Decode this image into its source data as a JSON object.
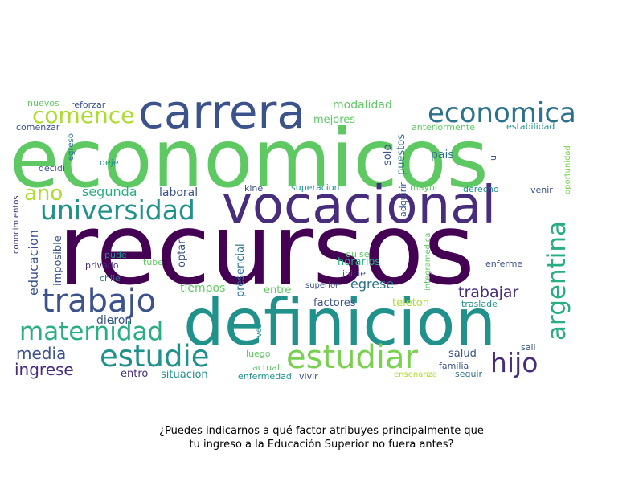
{
  "caption": {
    "line1": "¿Puedes indicarnos a qué factor atribuyes principalmente que",
    "line2": "tu ingreso a la Educación Superior no fuera antes?"
  },
  "palette": {
    "deep_purple": "#440154",
    "dark_purple": "#472d7b",
    "indigo": "#3b528b",
    "blue": "#2c728e",
    "teal": "#21918c",
    "green_teal": "#28ae80",
    "green": "#5ec962",
    "lime": "#addc30",
    "yellow": "#fde725"
  },
  "words": [
    {
      "text": "economicos",
      "color": "#5ec962"
    },
    {
      "text": "recursos",
      "color": "#440154"
    },
    {
      "text": "definicion",
      "color": "#21918c"
    },
    {
      "text": "vocacional",
      "color": "#472d7b"
    },
    {
      "text": "carrera",
      "color": "#3b528b"
    },
    {
      "text": "economica",
      "color": "#2c728e"
    },
    {
      "text": "universidad",
      "color": "#21918c"
    },
    {
      "text": "trabajo",
      "color": "#3b528b"
    },
    {
      "text": "maternidad",
      "color": "#28ae80"
    },
    {
      "text": "estudie",
      "color": "#21918c"
    },
    {
      "text": "estudiar",
      "color": "#7ad151"
    },
    {
      "text": "argentina",
      "color": "#28ae80"
    },
    {
      "text": "hijo",
      "color": "#472d7b"
    },
    {
      "text": "comence",
      "color": "#addc30"
    },
    {
      "text": "ano",
      "color": "#addc30"
    },
    {
      "text": "media",
      "color": "#3b528b"
    },
    {
      "text": "ingrese",
      "color": "#472d7b"
    },
    {
      "text": "segunda",
      "color": "#28ae80"
    },
    {
      "text": "laboral",
      "color": "#3b528b"
    },
    {
      "text": "educacion",
      "color": "#3b528b"
    },
    {
      "text": "trabajar",
      "color": "#472d7b"
    },
    {
      "text": "egrese",
      "color": "#2c728e"
    },
    {
      "text": "modalidad",
      "color": "#5ec962"
    },
    {
      "text": "mejores",
      "color": "#5ec962"
    },
    {
      "text": "pais",
      "color": "#2c728e"
    },
    {
      "text": "solo",
      "color": "#3b528b"
    },
    {
      "text": "puestos",
      "color": "#2c728e"
    },
    {
      "text": "adquirir",
      "color": "#3b528b"
    },
    {
      "text": "presencial",
      "color": "#2c728e"
    },
    {
      "text": "optar",
      "color": "#3b528b"
    },
    {
      "text": "imposible",
      "color": "#3b528b"
    },
    {
      "text": "dieron",
      "color": "#3b528b"
    },
    {
      "text": "tiempos",
      "color": "#5ec962"
    },
    {
      "text": "horarios",
      "color": "#28ae80"
    },
    {
      "text": "factores",
      "color": "#3b528b"
    },
    {
      "text": "teleton",
      "color": "#addc30"
    },
    {
      "text": "salud",
      "color": "#3b528b"
    },
    {
      "text": "situacion",
      "color": "#21918c"
    },
    {
      "text": "entre",
      "color": "#5ec962"
    },
    {
      "text": "entro",
      "color": "#472d7b"
    },
    {
      "text": "nuevos",
      "color": "#5ec962"
    },
    {
      "text": "reforzar",
      "color": "#3b528b"
    },
    {
      "text": "comenzar",
      "color": "#3b528b"
    },
    {
      "text": "egreso",
      "color": "#2c728e"
    },
    {
      "text": "decidi",
      "color": "#3b528b"
    },
    {
      "text": "deje",
      "color": "#21918c"
    },
    {
      "text": "anteriormente",
      "color": "#5ec962"
    },
    {
      "text": "estabilidad",
      "color": "#21918c"
    },
    {
      "text": "oportunidad",
      "color": "#7ad151"
    },
    {
      "text": "u",
      "color": "#3b528b"
    },
    {
      "text": "kine",
      "color": "#3b528b"
    },
    {
      "text": "superacion",
      "color": "#21918c"
    },
    {
      "text": "mayor",
      "color": "#5ec962"
    },
    {
      "text": "derecho",
      "color": "#21918c"
    },
    {
      "text": "venir",
      "color": "#3b528b"
    },
    {
      "text": "conocimientos",
      "color": "#472d7b"
    },
    {
      "text": "pude",
      "color": "#21918c"
    },
    {
      "text": "privado",
      "color": "#472d7b"
    },
    {
      "text": "chile",
      "color": "#2c728e"
    },
    {
      "text": "tube",
      "color": "#5ec962"
    },
    {
      "text": "quise",
      "color": "#5ec962"
    },
    {
      "text": "inicie",
      "color": "#3b528b"
    },
    {
      "text": "integramedica",
      "color": "#5ec962"
    },
    {
      "text": "enferme",
      "color": "#3b528b"
    },
    {
      "text": "superior",
      "color": "#3b528b"
    },
    {
      "text": "traslade",
      "color": "#21918c"
    },
    {
      "text": "vez",
      "color": "#21918c"
    },
    {
      "text": "luego",
      "color": "#5ec962"
    },
    {
      "text": "actual",
      "color": "#5ec962"
    },
    {
      "text": "enfermedad",
      "color": "#21918c"
    },
    {
      "text": "vivir",
      "color": "#3b528b"
    },
    {
      "text": "familia",
      "color": "#3b528b"
    },
    {
      "text": "sali",
      "color": "#3b528b"
    },
    {
      "text": "seguir",
      "color": "#2c728e"
    },
    {
      "text": "ensenanza",
      "color": "#addc30"
    }
  ]
}
